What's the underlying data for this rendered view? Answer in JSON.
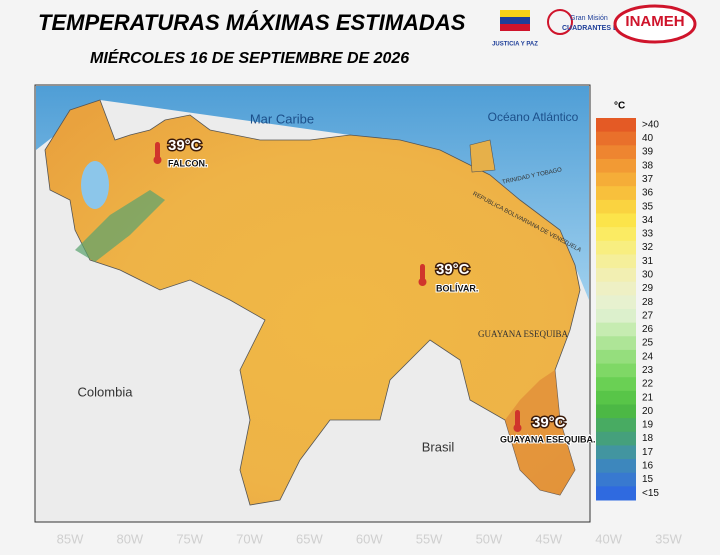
{
  "header": {
    "title": "TEMPERATURAS MÁXIMAS ESTIMADAS",
    "date": "MIÉRCOLES 16 DE SEPTIEMBRE DE 2026",
    "logos": [
      "JUSTICIA Y PAZ",
      "Gran Misión",
      "CUADRANTES DE PAZ",
      "INAMEH"
    ]
  },
  "map_labels": {
    "sea": "Mar Caribe",
    "ocean": "Océano Atlántico",
    "colombia": "Colombia",
    "brasil": "Brasil",
    "esequibo": "GUAYANA ESEQUIBA",
    "trinidad": "TRINIDAD Y TOBAGO",
    "venezuela": "REPUBLICA BOLIVARIANA DE VENEZUELA"
  },
  "callouts": [
    {
      "temp": "39°C",
      "place": "FALCON."
    },
    {
      "temp": "39°C",
      "place": "BOLÍVAR."
    },
    {
      "temp": "39°C",
      "place": "GUAYANA ESEQUIBA."
    }
  ],
  "legend": {
    "unit": "°C",
    "items": [
      {
        "label": ">40",
        "color": "#e45a25"
      },
      {
        "label": "40",
        "color": "#e9702b"
      },
      {
        "label": "39",
        "color": "#ee8530"
      },
      {
        "label": "38",
        "color": "#f29a34"
      },
      {
        "label": "37",
        "color": "#f5ad38"
      },
      {
        "label": "36",
        "color": "#f8c03c"
      },
      {
        "label": "35",
        "color": "#fad340"
      },
      {
        "label": "34",
        "color": "#fce44a"
      },
      {
        "label": "33",
        "color": "#fbeb63"
      },
      {
        "label": "32",
        "color": "#f8ee80"
      },
      {
        "label": "31",
        "color": "#f5ef9a"
      },
      {
        "label": "30",
        "color": "#f2efb2"
      },
      {
        "label": "29",
        "color": "#eef0c4"
      },
      {
        "label": "28",
        "color": "#e7f1cf"
      },
      {
        "label": "27",
        "color": "#dcf0cc"
      },
      {
        "label": "26",
        "color": "#c6ecb1"
      },
      {
        "label": "25",
        "color": "#aee597"
      },
      {
        "label": "24",
        "color": "#95de7d"
      },
      {
        "label": "23",
        "color": "#7fd866"
      },
      {
        "label": "22",
        "color": "#6ad054"
      },
      {
        "label": "21",
        "color": "#58c548"
      },
      {
        "label": "20",
        "color": "#4cb845"
      },
      {
        "label": "19",
        "color": "#48ab62"
      },
      {
        "label": "18",
        "color": "#45a07c"
      },
      {
        "label": "17",
        "color": "#4295a0"
      },
      {
        "label": "16",
        "color": "#3d87bd"
      },
      {
        "label": "15",
        "color": "#3879d0"
      },
      {
        "label": "<15",
        "color": "#2f6ae0"
      }
    ]
  },
  "longitudes": [
    "85W",
    "80W",
    "75W",
    "70W",
    "65W",
    "60W",
    "55W",
    "50W",
    "45W",
    "40W",
    "35W"
  ]
}
